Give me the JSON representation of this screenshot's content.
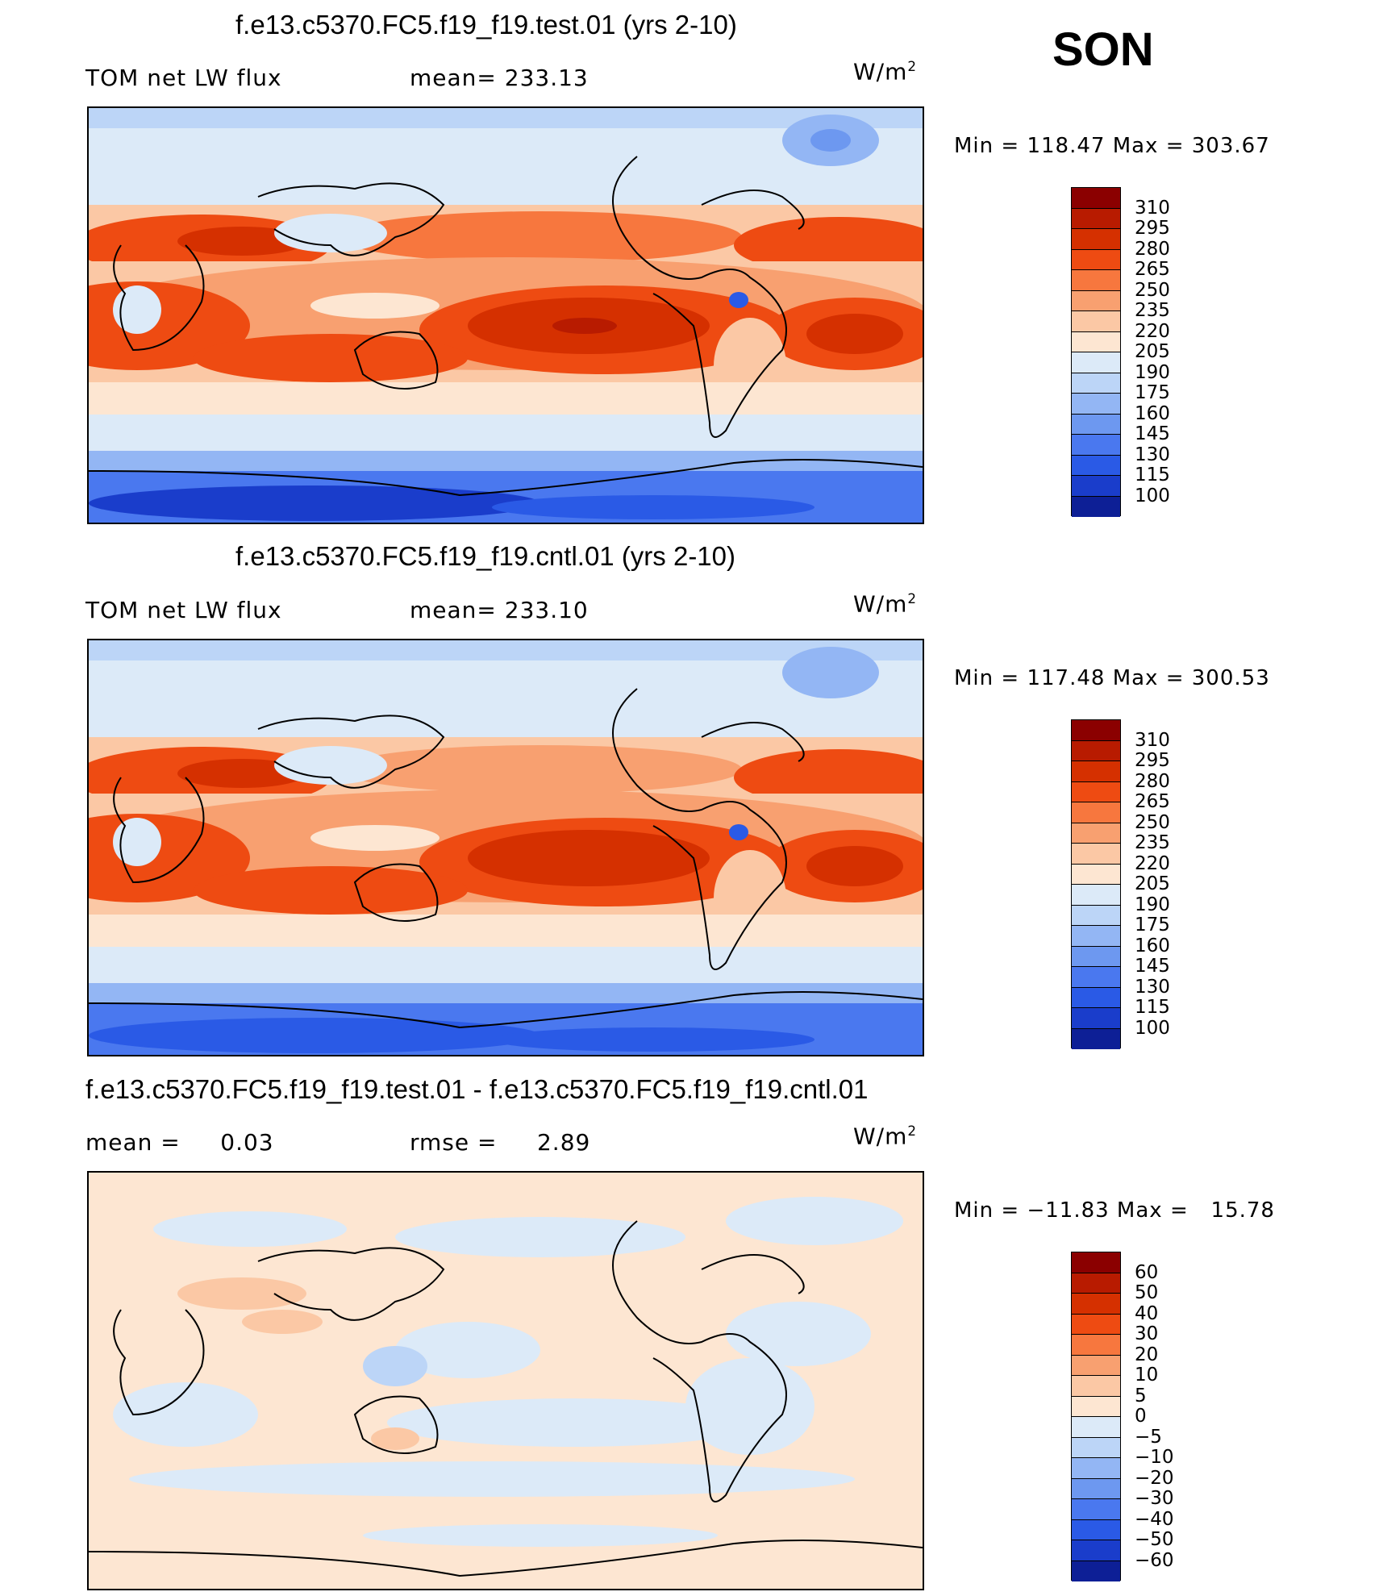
{
  "season": "SON",
  "panels": [
    {
      "title": "f.e13.c5370.FC5.f19_f19.test.01 (yrs 2-10)",
      "left_label": "TOM net LW flux",
      "mid_label": "mean= 233.13",
      "units_base": "W/m",
      "units_exp": "2",
      "minmax": "Min = 118.47 Max = 303.67"
    },
    {
      "title": "f.e13.c5370.FC5.f19_f19.cntl.01 (yrs 2-10)",
      "left_label": "TOM net LW flux",
      "mid_label": "mean= 233.10",
      "units_base": "W/m",
      "units_exp": "2",
      "minmax": "Min = 117.48 Max = 300.53"
    },
    {
      "title": "f.e13.c5370.FC5.f19_f19.test.01 - f.e13.c5370.FC5.f19_f19.cntl.01",
      "left_label": "mean =     0.03",
      "mid_label": "rmse =     2.89",
      "units_base": "W/m",
      "units_exp": "2",
      "minmax": "Min = −11.83 Max =   15.78"
    }
  ],
  "colorbar_abs": {
    "labels": [
      "310",
      "295",
      "280",
      "265",
      "250",
      "235",
      "220",
      "205",
      "190",
      "175",
      "160",
      "145",
      "130",
      "115",
      "100"
    ],
    "colors": [
      "#8b0000",
      "#b81b00",
      "#d53000",
      "#ee4b12",
      "#f7773e",
      "#f8a070",
      "#fbc8a5",
      "#fde6d2",
      "#dceaf8",
      "#bcd5f7",
      "#93b6f4",
      "#6d98f0",
      "#4a78ef",
      "#2a5ae6",
      "#1a3dcb",
      "#0d1f96"
    ]
  },
  "colorbar_diff": {
    "labels": [
      "60",
      "50",
      "40",
      "30",
      "20",
      "10",
      "5",
      "0",
      "−5",
      "−10",
      "−20",
      "−30",
      "−40",
      "−50",
      "−60"
    ],
    "colors": [
      "#8b0000",
      "#b81b00",
      "#d53000",
      "#ee4b12",
      "#f7773e",
      "#f8a070",
      "#fbc8a5",
      "#fde6d2",
      "#dceaf8",
      "#bcd5f7",
      "#93b6f4",
      "#6d98f0",
      "#4a78ef",
      "#2a5ae6",
      "#1a3dcb",
      "#0d1f96"
    ]
  },
  "map_data": {
    "projection": "cylindrical equidistant, centered on Pacific",
    "panel_types": [
      "absolute",
      "absolute",
      "difference"
    ]
  }
}
